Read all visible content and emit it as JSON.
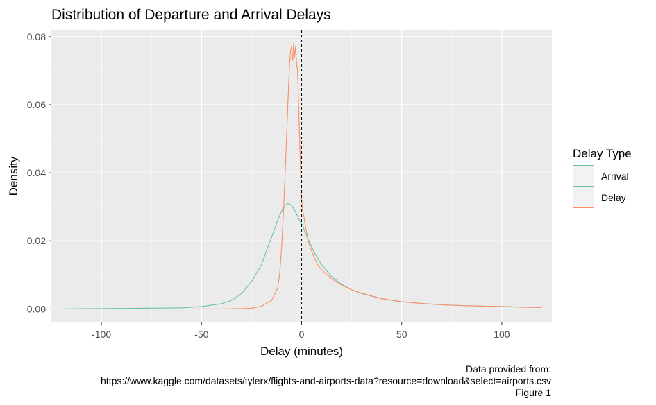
{
  "chart_data": {
    "type": "line",
    "title": "Distribution of Departure and Arrival Delays",
    "xlabel": "Delay (minutes)",
    "ylabel": "Density",
    "xlim": [
      -125,
      125
    ],
    "ylim": [
      -0.004,
      0.082
    ],
    "x_ticks": [
      -100,
      -50,
      0,
      50,
      100
    ],
    "x_tick_labels": [
      "-100",
      "-50",
      "0",
      "50",
      "100"
    ],
    "y_ticks": [
      0.0,
      0.02,
      0.04,
      0.06,
      0.08
    ],
    "y_tick_labels": [
      "0.00",
      "0.02",
      "0.04",
      "0.06",
      "0.08"
    ],
    "grid": true,
    "reference_line": {
      "x": 0,
      "style": "dashed",
      "color": "#000000"
    },
    "legend": {
      "title": "Delay Type",
      "position": "right"
    },
    "series": [
      {
        "name": "Arrival",
        "color": "#66C2A5",
        "x": [
          -120,
          -100,
          -80,
          -60,
          -50,
          -40,
          -35,
          -30,
          -25,
          -20,
          -17,
          -15,
          -12,
          -10,
          -8,
          -7,
          -6,
          -5,
          -4,
          -3,
          -2,
          -1,
          0,
          2,
          4,
          6,
          8,
          10,
          15,
          20,
          25,
          30,
          40,
          50,
          60,
          70,
          80,
          90,
          100,
          110,
          120
        ],
        "y": [
          0.0,
          0.0001,
          0.0002,
          0.0003,
          0.0007,
          0.0015,
          0.0025,
          0.0045,
          0.008,
          0.013,
          0.018,
          0.021,
          0.026,
          0.0288,
          0.0305,
          0.031,
          0.0308,
          0.0303,
          0.0295,
          0.0285,
          0.0272,
          0.026,
          0.025,
          0.0222,
          0.0195,
          0.017,
          0.0148,
          0.013,
          0.0095,
          0.0072,
          0.0056,
          0.0045,
          0.003,
          0.0021,
          0.0016,
          0.0012,
          0.001,
          0.0008,
          0.0007,
          0.0005,
          0.0004
        ]
      },
      {
        "name": "Delay",
        "color": "#FC8D62",
        "x": [
          -55,
          -40,
          -30,
          -25,
          -20,
          -15,
          -12,
          -11,
          -10,
          -9,
          -8,
          -7,
          -6.5,
          -6,
          -5.5,
          -5,
          -4.5,
          -4,
          -3.5,
          -3,
          -2.5,
          -2,
          -1.5,
          -1,
          -0.5,
          0,
          0.5,
          1,
          2,
          3,
          4,
          6,
          8,
          10,
          15,
          20,
          25,
          30,
          40,
          50,
          60,
          70,
          80,
          90,
          100,
          110,
          120
        ],
        "y": [
          0.0,
          0.0,
          0.0001,
          0.0002,
          0.0008,
          0.0025,
          0.006,
          0.01,
          0.018,
          0.029,
          0.043,
          0.058,
          0.066,
          0.072,
          0.076,
          0.077,
          0.073,
          0.078,
          0.074,
          0.077,
          0.072,
          0.07,
          0.06,
          0.05,
          0.04,
          0.032,
          0.029,
          0.0275,
          0.024,
          0.021,
          0.0185,
          0.0155,
          0.013,
          0.0115,
          0.0088,
          0.007,
          0.0056,
          0.0046,
          0.003,
          0.0021,
          0.0016,
          0.0012,
          0.001,
          0.0008,
          0.0007,
          0.0005,
          0.0004
        ]
      }
    ]
  },
  "caption_lines": [
    "Data provided from:",
    "https://www.kaggle.com/datasets/tylerx/flights-and-airports-data?resource=download&select=airports.csv",
    "Figure 1"
  ]
}
